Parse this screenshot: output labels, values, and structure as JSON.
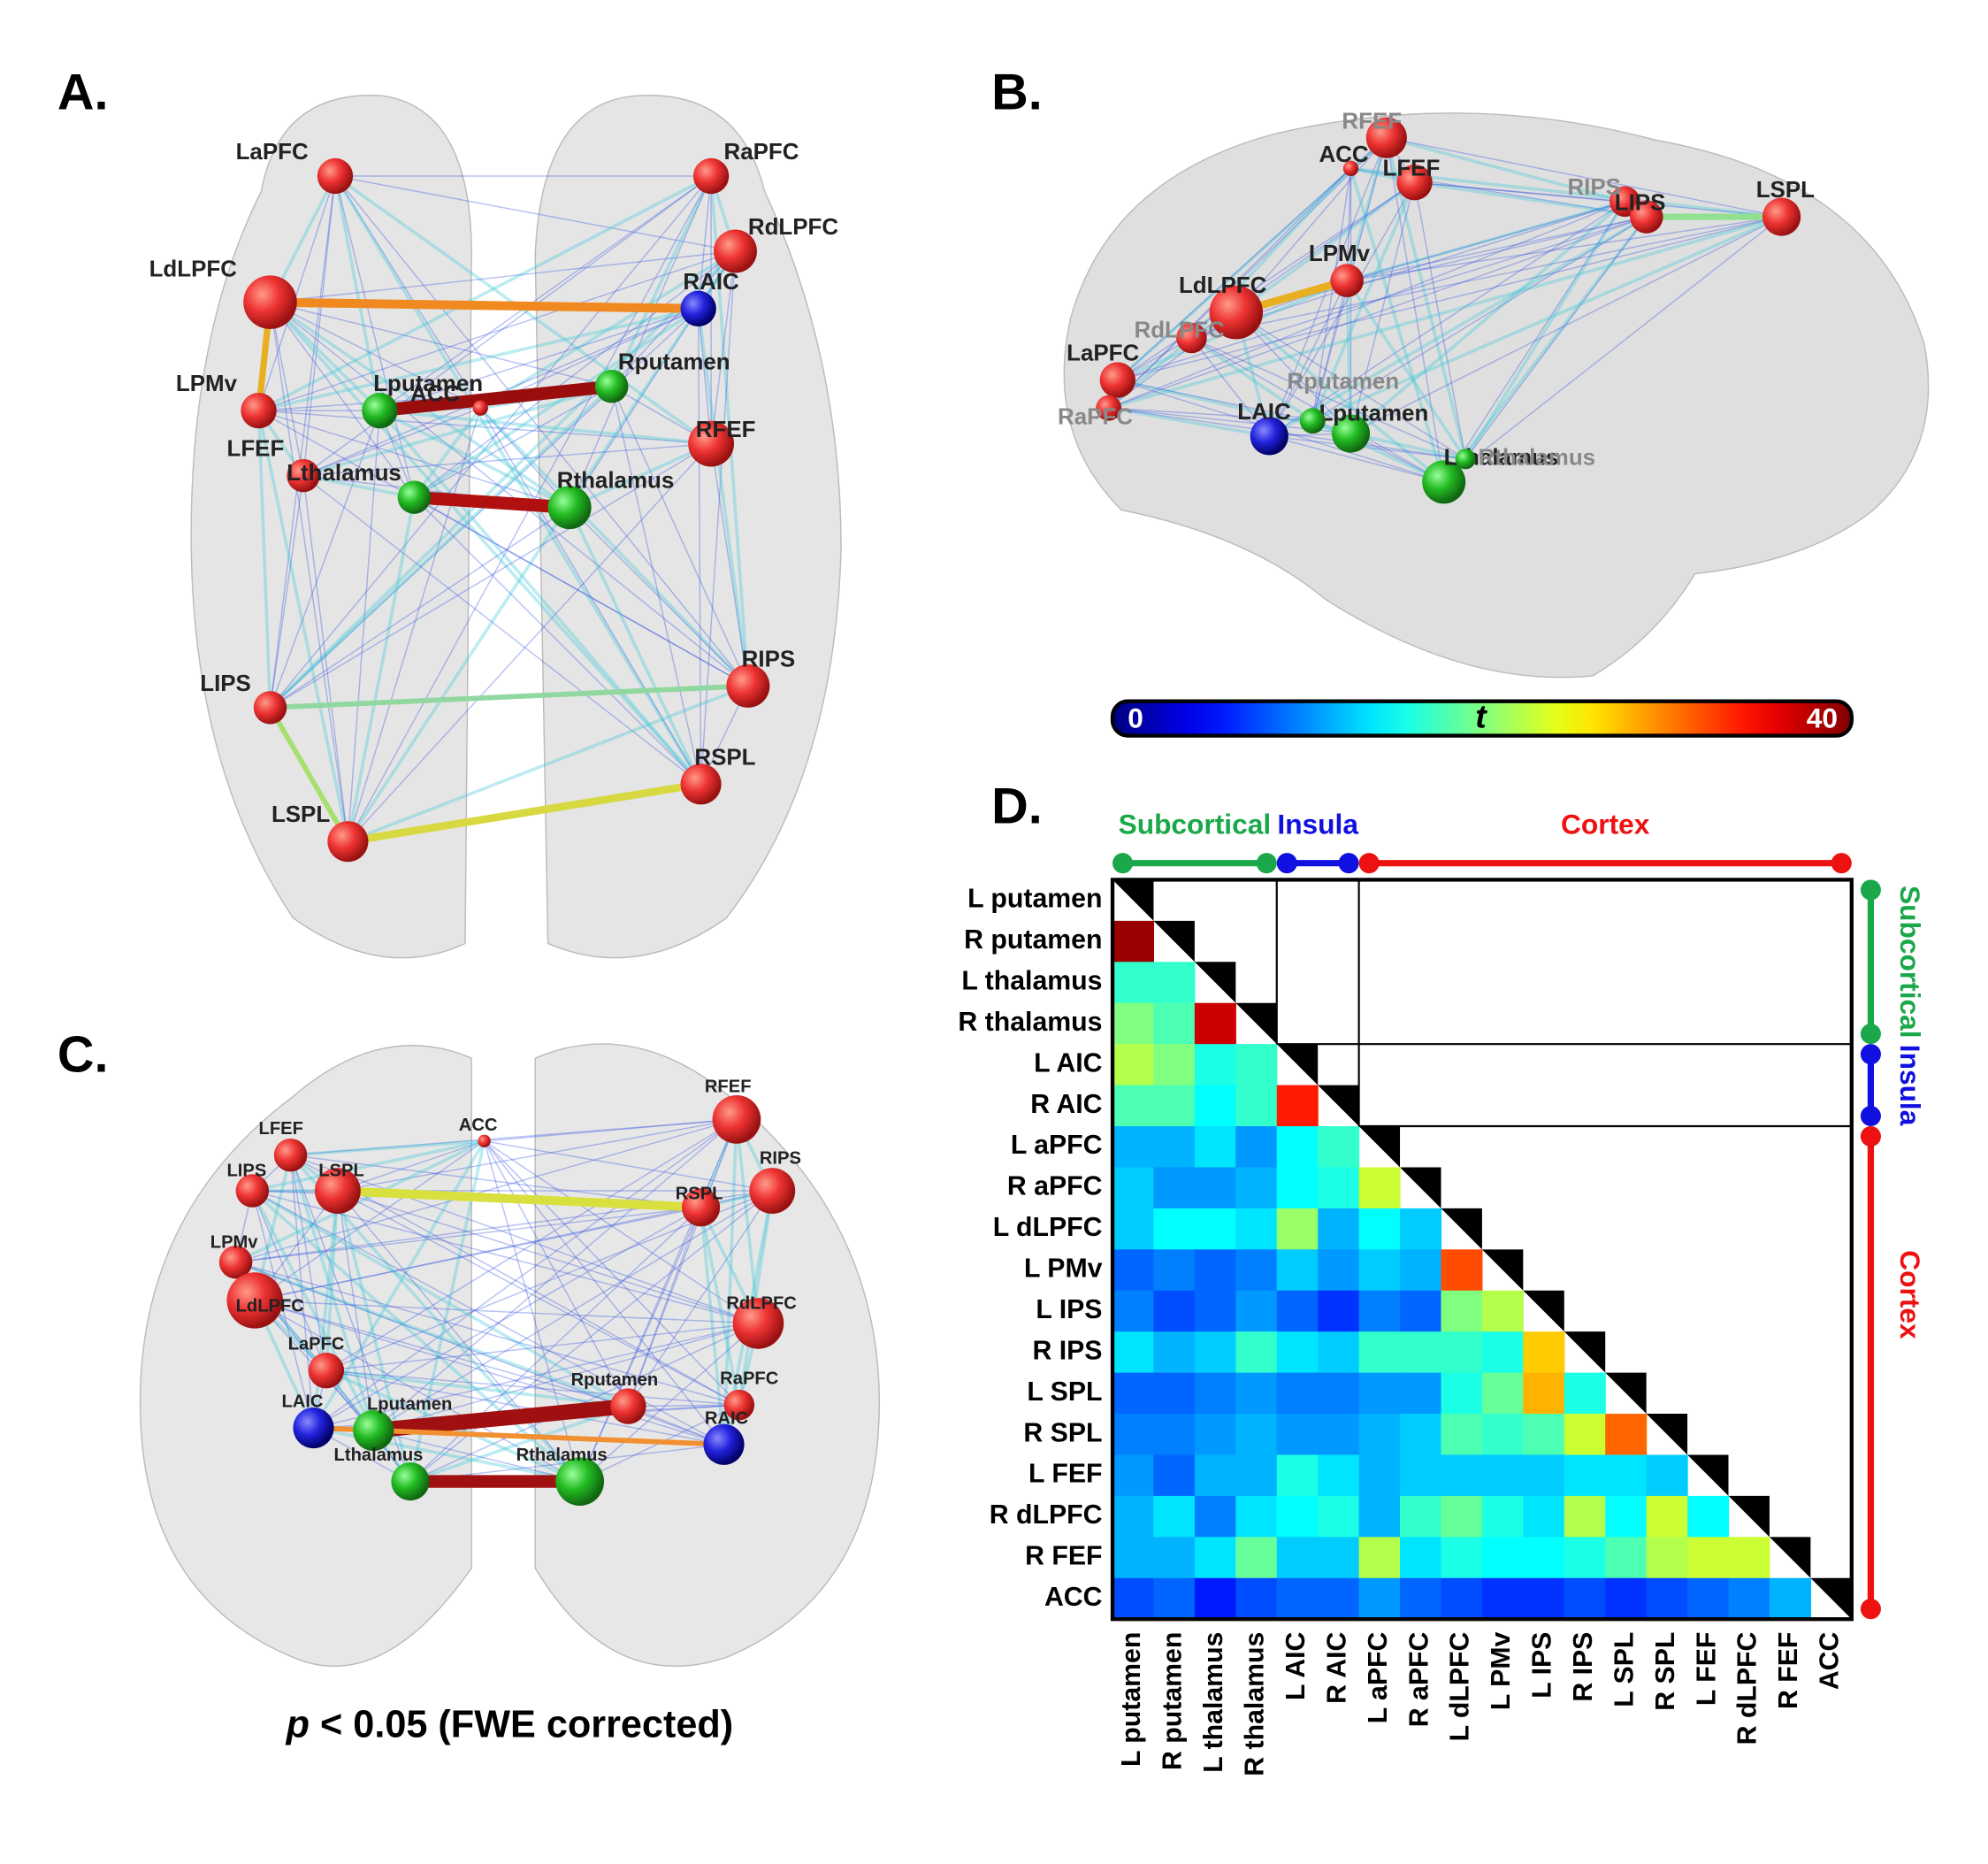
{
  "panels": [
    {
      "label": "A.",
      "nodes": [
        "LaPFC",
        "RaPFC",
        "RdLPFC",
        "LdLPFC",
        "RAIC",
        "LPMv",
        "Lputamen",
        "ACC",
        "Rputamen",
        "RFEF",
        "LFEF",
        "Lthalamus",
        "Rthalamus",
        "LIPS",
        "RIPS",
        "RSPL",
        "LSPL"
      ]
    },
    {
      "label": "B.",
      "nodes": [
        "RFEF",
        "ACC",
        "LFEF",
        "RIPS",
        "LIPS",
        "LSPL",
        "LPMv",
        "LdLPFC",
        "RdLPFC",
        "LaPFC",
        "RaPFC",
        "LAIC",
        "Lputamen",
        "Rputamen",
        "Lthalamus",
        "Rthalamus"
      ]
    },
    {
      "label": "C.",
      "nodes": [
        "RFEF",
        "LFEF",
        "ACC",
        "RIPS",
        "LIPS",
        "LSPL",
        "RSPL",
        "LPMv",
        "LdLPFC",
        "RdLPFC",
        "LaPFC",
        "Rputamen",
        "RaPFC",
        "LAIC",
        "Lputamen",
        "RAIC",
        "Lthalamus",
        "Rthalamus"
      ]
    }
  ],
  "colorbar": {
    "min": 0,
    "max": 40,
    "label": "t"
  },
  "footnote": {
    "italic": "p",
    "text": "< 0.05 (FWE corrected)"
  },
  "matrix": {
    "label": "D.",
    "colormap": "jet",
    "vmin": 0,
    "vmax": 40,
    "groups": [
      {
        "name": "Subcortical",
        "color": "#1aa84a",
        "size": 4
      },
      {
        "name": "Insula",
        "color": "#1010e0",
        "size": 2
      },
      {
        "name": "Cortex",
        "color": "#ee1111",
        "size": 12
      }
    ],
    "rows": [
      "L putamen",
      "R putamen",
      "L thalamus",
      "R thalamus",
      "L AIC",
      "R AIC",
      "L aPFC",
      "R aPFC",
      "L dLPFC",
      "L PMv",
      "L IPS",
      "R IPS",
      "L SPL",
      "R SPL",
      "L FEF",
      "R dLPFC",
      "R FEF",
      "ACC"
    ],
    "values": [
      [
        39
      ],
      [
        17,
        17
      ],
      [
        20,
        18,
        37
      ],
      [
        22,
        20,
        16,
        17
      ],
      [
        18,
        18,
        15,
        17,
        34
      ],
      [
        12,
        12,
        14,
        11,
        15,
        17
      ],
      [
        13,
        11,
        11,
        12,
        15,
        16,
        23
      ],
      [
        13,
        15,
        15,
        14,
        21,
        12,
        15,
        13
      ],
      [
        9,
        10,
        9,
        10,
        13,
        11,
        13,
        12,
        32
      ],
      [
        10,
        8,
        9,
        11,
        9,
        7,
        10,
        9,
        20,
        22
      ],
      [
        14,
        12,
        13,
        17,
        14,
        13,
        17,
        17,
        17,
        16,
        27
      ],
      [
        9,
        9,
        10,
        11,
        10,
        10,
        11,
        11,
        16,
        19,
        28,
        16
      ],
      [
        10,
        10,
        11,
        12,
        11,
        11,
        12,
        13,
        18,
        17,
        18,
        23,
        31
      ],
      [
        11,
        9,
        12,
        12,
        16,
        14,
        12,
        13,
        13,
        13,
        13,
        14,
        14,
        13
      ],
      [
        12,
        14,
        10,
        14,
        15,
        16,
        12,
        17,
        19,
        16,
        14,
        22,
        15,
        23,
        15
      ],
      [
        12,
        12,
        14,
        19,
        13,
        13,
        22,
        14,
        16,
        15,
        15,
        16,
        18,
        22,
        23,
        23
      ],
      [
        8,
        9,
        6,
        8,
        9,
        9,
        11,
        9,
        8,
        7,
        7,
        8,
        7,
        8,
        9,
        10,
        12
      ]
    ]
  }
}
